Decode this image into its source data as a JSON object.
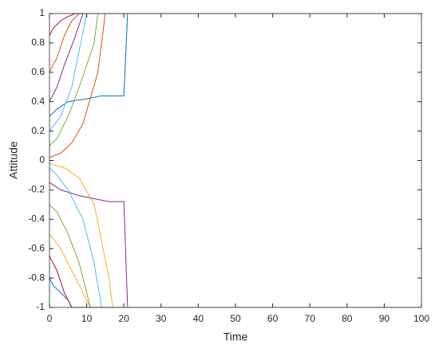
{
  "chart_data": {
    "type": "line",
    "xlabel": "Time",
    "ylabel": "Attitude",
    "xlim": [
      0,
      100
    ],
    "xticks": [
      0,
      10,
      20,
      30,
      40,
      50,
      60,
      70,
      80,
      90,
      100
    ],
    "ylim": [
      -1,
      1
    ],
    "yticks": [
      -1,
      -0.8,
      -0.6,
      -0.4,
      -0.2,
      0,
      0.2,
      0.4,
      0.6,
      0.8,
      1
    ],
    "series": [
      {
        "color": "#0072BD",
        "x": [
          0,
          2,
          5,
          10,
          14,
          20,
          21,
          100
        ],
        "values": [
          0.3,
          0.35,
          0.4,
          0.42,
          0.44,
          0.44,
          1,
          1
        ]
      },
      {
        "color": "#7E2F8E",
        "x": [
          0,
          3,
          8,
          12,
          16,
          20,
          21,
          100
        ],
        "values": [
          -0.15,
          -0.2,
          -0.24,
          -0.26,
          -0.28,
          -0.28,
          -1,
          -1
        ]
      },
      {
        "color": "#D95319",
        "x": [
          0,
          2,
          4,
          6,
          8,
          100
        ],
        "values": [
          0.6,
          0.7,
          0.85,
          0.95,
          1,
          1
        ]
      },
      {
        "color": "#EDB120",
        "x": [
          0,
          3,
          6,
          9,
          11,
          100
        ],
        "values": [
          -0.5,
          -0.6,
          -0.75,
          -0.9,
          -1,
          -1
        ]
      },
      {
        "color": "#77AC30",
        "x": [
          0,
          2,
          5,
          8,
          12,
          13,
          100
        ],
        "values": [
          0.1,
          0.15,
          0.3,
          0.5,
          0.8,
          1,
          1
        ]
      },
      {
        "color": "#4DBEEE",
        "x": [
          0,
          2,
          5,
          9,
          12,
          14,
          100
        ],
        "values": [
          -0.05,
          -0.1,
          -0.2,
          -0.4,
          -0.7,
          -1,
          -1
        ]
      },
      {
        "color": "#A2142F",
        "x": [
          0,
          1,
          3,
          5,
          7,
          100
        ],
        "values": [
          0.85,
          0.9,
          0.95,
          0.98,
          1,
          1
        ]
      },
      {
        "color": "#0072BD",
        "x": [
          0,
          1,
          3,
          5,
          6,
          100
        ],
        "values": [
          -0.8,
          -0.85,
          -0.9,
          -0.95,
          -1,
          -1
        ]
      },
      {
        "color": "#D95319",
        "x": [
          0,
          3,
          6,
          9,
          13,
          15,
          100
        ],
        "values": [
          0.02,
          0.05,
          0.12,
          0.25,
          0.6,
          1,
          1
        ]
      },
      {
        "color": "#7E2F8E",
        "x": [
          0,
          2,
          4,
          7,
          9,
          100
        ],
        "values": [
          0.4,
          0.5,
          0.65,
          0.85,
          1,
          1
        ]
      },
      {
        "color": "#77AC30",
        "x": [
          0,
          2,
          5,
          8,
          11,
          100
        ],
        "values": [
          -0.3,
          -0.35,
          -0.5,
          -0.7,
          -1,
          -1
        ]
      },
      {
        "color": "#A2142F",
        "x": [
          0,
          2,
          4,
          6,
          100
        ],
        "values": [
          -0.65,
          -0.75,
          -0.9,
          -1,
          -1
        ]
      },
      {
        "color": "#4DBEEE",
        "x": [
          0,
          3,
          6,
          10,
          100
        ],
        "values": [
          0.2,
          0.3,
          0.5,
          1,
          1
        ]
      },
      {
        "color": "#EDB120",
        "x": [
          0,
          4,
          8,
          12,
          16,
          17,
          100
        ],
        "values": [
          -0.02,
          -0.05,
          -0.12,
          -0.3,
          -0.8,
          -1,
          -1
        ]
      }
    ]
  }
}
